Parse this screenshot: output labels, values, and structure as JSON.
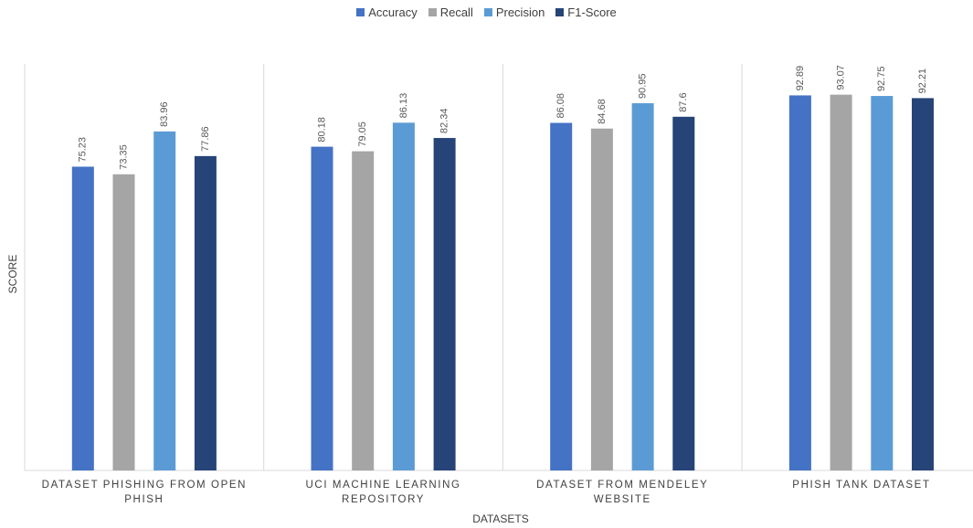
{
  "chart_data": {
    "type": "bar",
    "x_label": "DATASETS",
    "y_label": "SCORE",
    "categories": [
      "DATASET PHISHING FROM OPEN PHISH",
      "UCI MACHINE LEARNING REPOSITORY",
      "DATASET FROM MENDELEY WEBSITE",
      "PHISH TANK DATASET"
    ],
    "series": [
      {
        "name": "Accuracy",
        "color": "#4472c4",
        "values": [
          75.23,
          80.18,
          86.08,
          92.89
        ]
      },
      {
        "name": "Recall",
        "color": "#a5a5a5",
        "values": [
          73.35,
          79.05,
          84.68,
          93.07
        ]
      },
      {
        "name": "Precision",
        "color": "#5b9bd5",
        "values": [
          83.96,
          86.13,
          90.95,
          92.75
        ]
      },
      {
        "name": "F1-Score",
        "color": "#264478",
        "values": [
          77.86,
          82.34,
          87.6,
          92.21
        ]
      }
    ],
    "ylim": [
      0,
      100
    ],
    "legend": "top"
  }
}
